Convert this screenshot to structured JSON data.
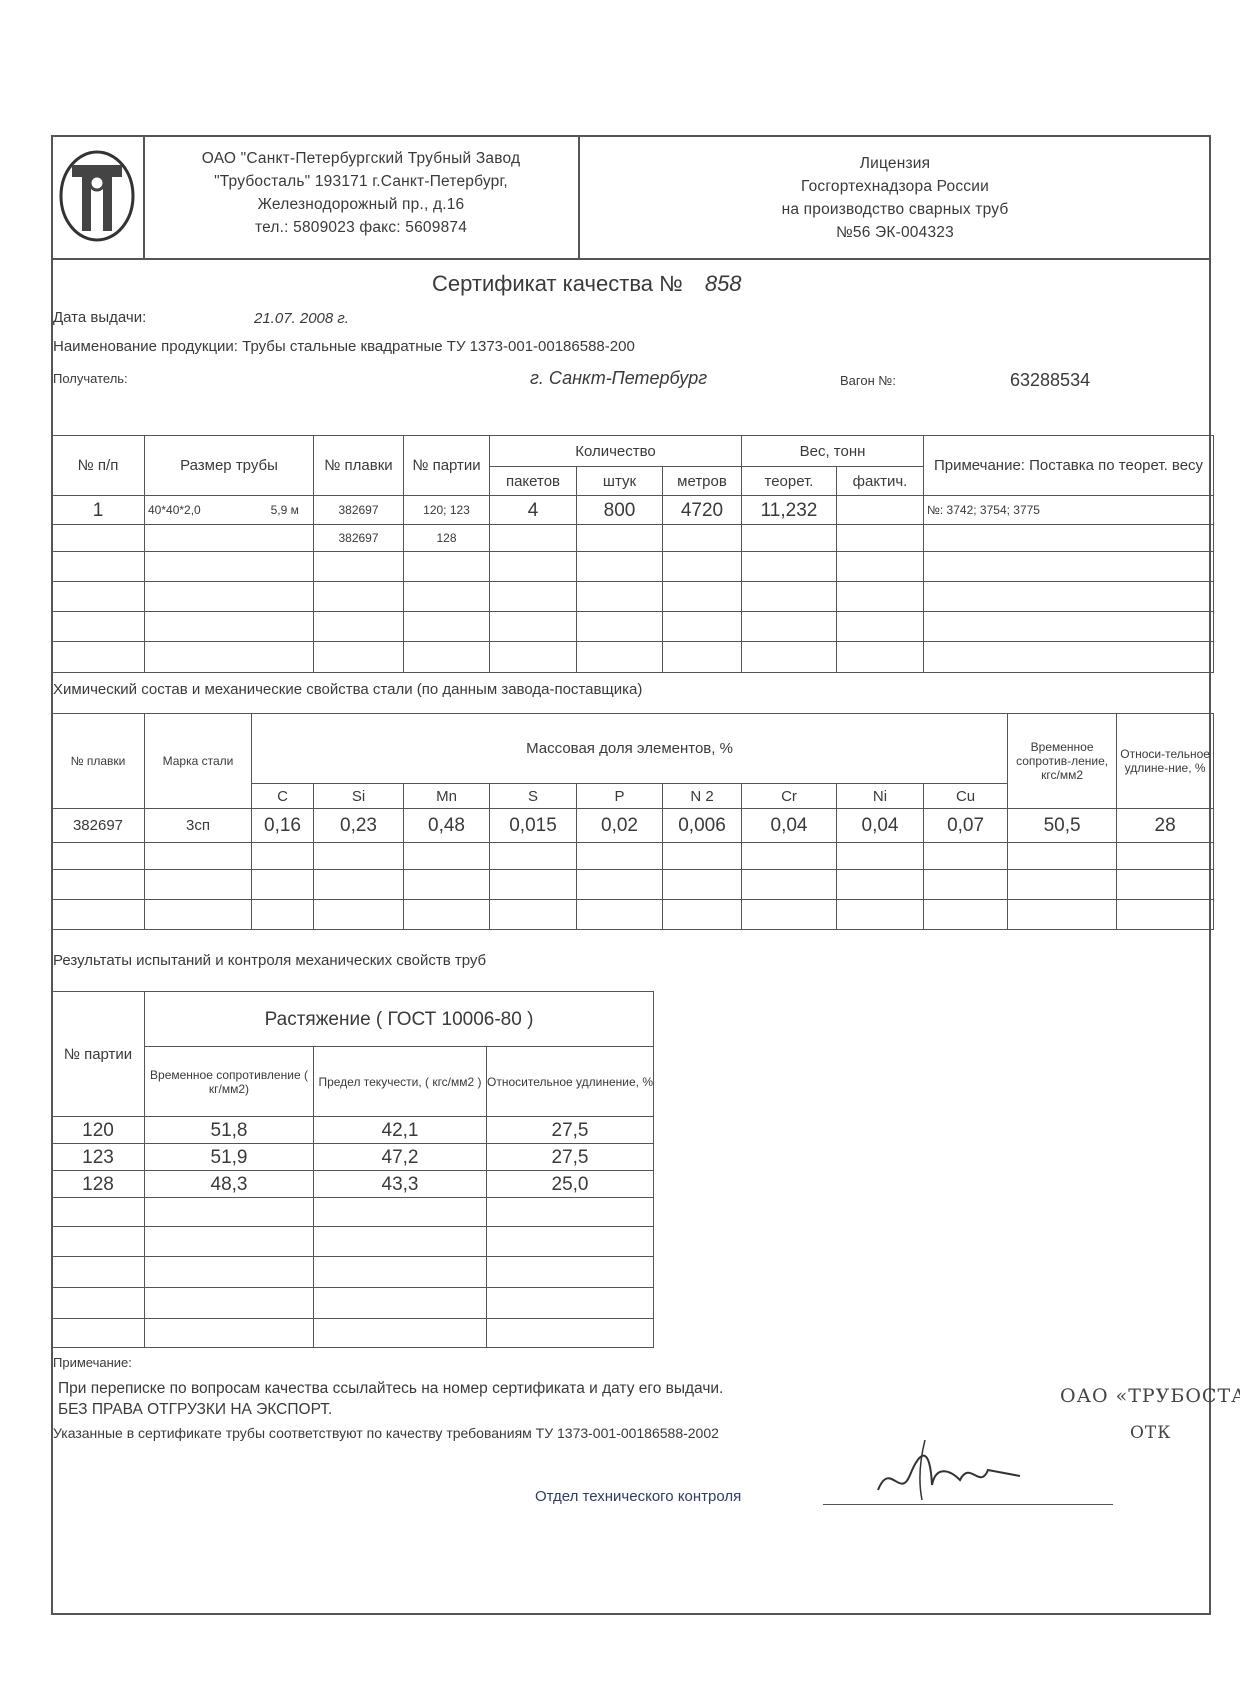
{
  "header": {
    "company": [
      "ОАО \"Санкт-Петербургский Трубный Завод",
      "\"Трубосталь\"  193171  г.Санкт-Петербург,",
      "Железнодорожный пр., д.16",
      "тел.: 5809023    факс: 5609874"
    ],
    "license": [
      "Лицензия",
      "Госгортехнадзора России",
      "на производство сварных труб",
      "№56    ЭК-004323"
    ],
    "logo_icon": "tube-plant-logo"
  },
  "certificate": {
    "title": "Сертификат качества №",
    "number": "858",
    "issue_date_label": "Дата выдачи:",
    "issue_date": "21.07.  2008 г.",
    "product_label": "Наименование продукции:",
    "product": "Трубы стальные квадратные ТУ 1373-001-00186588-200",
    "recipient_label": "Получатель:",
    "recipient": "г. Санкт-Петербург",
    "wagon_label": "Вагон №:",
    "wagon": "63288534"
  },
  "shipment_table": {
    "headers": {
      "num": "№ п/п",
      "size": "Размер трубы",
      "heat": "№ плавки",
      "batch": "№ партии",
      "quantity": "Количество",
      "packs": "пакетов",
      "pieces": "штук",
      "meters": "метров",
      "weight": "Вес, тонн",
      "theor": "теорет.",
      "actual": "фактич.",
      "note": "Примечание: Поставка по теорет. весу"
    },
    "rows": [
      [
        "1",
        "40*40*2,0",
        "5,9 м",
        "382697",
        "120; 123",
        "4",
        "800",
        "4720",
        "11,232",
        "",
        "№: 3742; 3754; 3775"
      ],
      [
        "",
        "",
        "",
        "382697",
        "128",
        "",
        "",
        "",
        "",
        "",
        ""
      ],
      [
        "",
        "",
        "",
        "",
        "",
        "",
        "",
        "",
        "",
        "",
        ""
      ],
      [
        "",
        "",
        "",
        "",
        "",
        "",
        "",
        "",
        "",
        "",
        ""
      ],
      [
        "",
        "",
        "",
        "",
        "",
        "",
        "",
        "",
        "",
        "",
        ""
      ],
      [
        "",
        "",
        "",
        "",
        "",
        "",
        "",
        "",
        "",
        "",
        ""
      ]
    ]
  },
  "chem_section_title": "Химический состав и механические свойства стали (по данным завода-поставщика)",
  "chem_table": {
    "headers": {
      "heat": "№ плавки",
      "grade": "Марка стали",
      "mass": "Массовая доля элементов, %",
      "tensile": "Временное сопротив-ление, кгс/мм2",
      "elong": "Относи-тельное удлине-ние, %"
    },
    "elements": [
      "C",
      "Si",
      "Mn",
      "S",
      "P",
      "N 2",
      "Cr",
      "Ni",
      "Cu"
    ],
    "rows": [
      [
        "382697",
        "3сп",
        "0,16",
        "0,23",
        "0,48",
        "0,015",
        "0,02",
        "0,006",
        "0,04",
        "0,04",
        "0,07",
        "50,5",
        "28"
      ],
      [
        "",
        "",
        "",
        "",
        "",
        "",
        "",
        "",
        "",
        "",
        "",
        "",
        ""
      ],
      [
        "",
        "",
        "",
        "",
        "",
        "",
        "",
        "",
        "",
        "",
        "",
        "",
        ""
      ],
      [
        "",
        "",
        "",
        "",
        "",
        "",
        "",
        "",
        "",
        "",
        "",
        "",
        ""
      ]
    ]
  },
  "mech_section_title": "Результаты испытаний  и контроля механических свойств труб",
  "mech_table": {
    "headers": {
      "batch": "№ партии",
      "tension": "Растяжение   ( ГОСТ 10006-80 )",
      "tensile": "Временное сопротивление ( кг/мм2)",
      "yield": "Предел текучести, ( кгс/мм2 )",
      "elong": "Относительное удлинение, %"
    },
    "rows": [
      [
        "120",
        "51,8",
        "42,1",
        "27,5"
      ],
      [
        "123",
        "51,9",
        "47,2",
        "27,5"
      ],
      [
        "128",
        "48,3",
        "43,3",
        "25,0"
      ],
      [
        "",
        "",
        "",
        ""
      ],
      [
        "",
        "",
        "",
        ""
      ],
      [
        "",
        "",
        "",
        ""
      ],
      [
        "",
        "",
        "",
        ""
      ],
      [
        "",
        "",
        "",
        ""
      ]
    ]
  },
  "footer": {
    "note_label": "Примечание:",
    "line1": "При переписке по вопросам качества ссылайтесь на номер сертификата и дату его выдачи.",
    "line2": "БЕЗ ПРАВА ОТГРУЗКИ НА ЭКСПОРТ.",
    "line3": "Указанные в сертификате трубы соответствуют по  качеству требованиям ТУ 1373-001-00186588-2002",
    "dept": "Отдел технического контроля",
    "stamp_company": "ОАО  «ТРУБОСТАЛЬ»",
    "stamp_otk": "ОТК",
    "signature": "Бокатов"
  }
}
